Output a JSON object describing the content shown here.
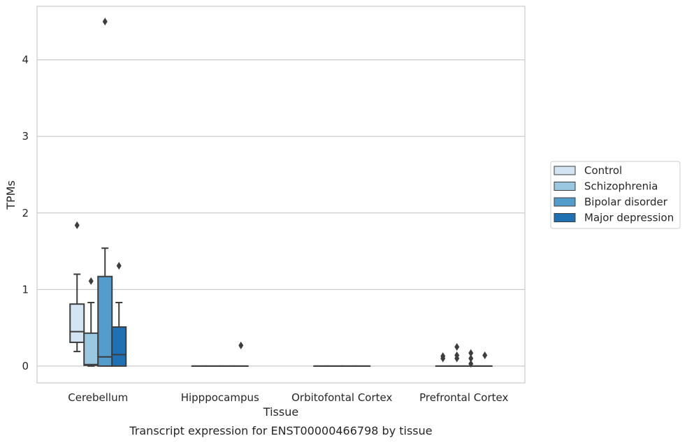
{
  "chart_data": {
    "type": "box",
    "xlabel": "Tissue",
    "ylabel": "TPMs",
    "caption": "Transcript expression for ENST00000466798 by tissue",
    "ylim": [
      -0.22,
      4.7
    ],
    "yticks": [
      0,
      1,
      2,
      3,
      4
    ],
    "grid": "horizontal",
    "legend_position": "right",
    "categories": [
      "Cerebellum",
      "Hipppocampus",
      "Orbitofontal Cortex",
      "Prefrontal Cortex"
    ],
    "series": [
      {
        "name": "Control",
        "color": "#d3e4f3",
        "boxes": [
          {
            "whisker_low": 0.19,
            "q1": 0.31,
            "median": 0.45,
            "q3": 0.81,
            "whisker_high": 1.2,
            "outliers": [
              1.84
            ]
          },
          {
            "whisker_low": 0,
            "q1": 0,
            "median": 0,
            "q3": 0,
            "whisker_high": 0,
            "outliers": []
          },
          {
            "whisker_low": 0,
            "q1": 0,
            "median": 0,
            "q3": 0,
            "whisker_high": 0,
            "outliers": []
          },
          {
            "whisker_low": 0,
            "q1": 0,
            "median": 0,
            "q3": 0,
            "whisker_high": 0,
            "outliers": [
              0.13,
              0.1
            ]
          }
        ]
      },
      {
        "name": "Schizophrenia",
        "color": "#9ac8e0",
        "boxes": [
          {
            "whisker_low": 0,
            "q1": 0.01,
            "median": 0.02,
            "q3": 0.43,
            "whisker_high": 0.83,
            "outliers": [
              1.11
            ]
          },
          {
            "whisker_low": 0,
            "q1": 0,
            "median": 0,
            "q3": 0,
            "whisker_high": 0,
            "outliers": []
          },
          {
            "whisker_low": 0,
            "q1": 0,
            "median": 0,
            "q3": 0,
            "whisker_high": 0,
            "outliers": []
          },
          {
            "whisker_low": 0,
            "q1": 0,
            "median": 0,
            "q3": 0,
            "whisker_high": 0,
            "outliers": [
              0.25,
              0.14,
              0.1
            ]
          }
        ]
      },
      {
        "name": "Bipolar disorder",
        "color": "#529dcc",
        "boxes": [
          {
            "whisker_low": 0,
            "q1": 0,
            "median": 0.12,
            "q3": 1.17,
            "whisker_high": 1.54,
            "outliers": [
              4.5
            ]
          },
          {
            "whisker_low": 0,
            "q1": 0,
            "median": 0,
            "q3": 0,
            "whisker_high": 0,
            "outliers": []
          },
          {
            "whisker_low": 0,
            "q1": 0,
            "median": 0,
            "q3": 0,
            "whisker_high": 0,
            "outliers": []
          },
          {
            "whisker_low": 0,
            "q1": 0,
            "median": 0,
            "q3": 0,
            "whisker_high": 0,
            "outliers": [
              0.17,
              0.1,
              0.03
            ]
          }
        ]
      },
      {
        "name": "Major depression",
        "color": "#2070b4",
        "boxes": [
          {
            "whisker_low": 0,
            "q1": 0,
            "median": 0.15,
            "q3": 0.51,
            "whisker_high": 0.83,
            "outliers": [
              1.31
            ]
          },
          {
            "whisker_low": 0,
            "q1": 0,
            "median": 0,
            "q3": 0,
            "whisker_high": 0,
            "outliers": [
              0.27
            ]
          },
          {
            "whisker_low": 0,
            "q1": 0,
            "median": 0,
            "q3": 0,
            "whisker_high": 0,
            "outliers": []
          },
          {
            "whisker_low": 0,
            "q1": 0,
            "median": 0,
            "q3": 0,
            "whisker_high": 0,
            "outliers": [
              0.14
            ]
          }
        ]
      }
    ]
  }
}
